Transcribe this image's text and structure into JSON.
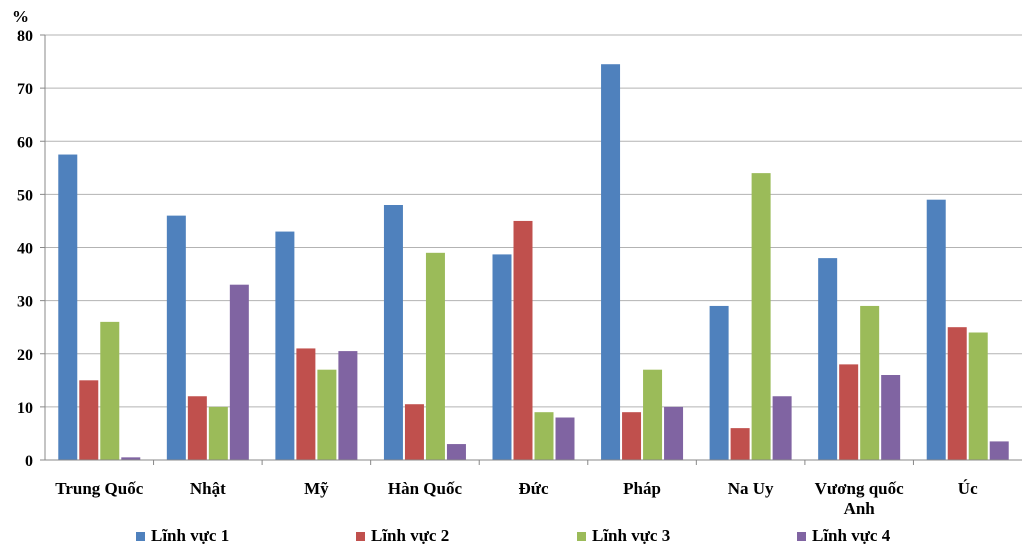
{
  "chart_data": {
    "type": "bar",
    "title": "",
    "y_unit_label": "%",
    "xlabel": "",
    "ylabel": "",
    "ylim": [
      0,
      80
    ],
    "yticks": [
      0,
      10,
      20,
      30,
      40,
      50,
      60,
      70,
      80
    ],
    "grid": true,
    "legend_position": "bottom",
    "categories": [
      "Trung Quốc",
      "Nhật",
      "Mỹ",
      "Hàn Quốc",
      "Đức",
      "Pháp",
      "Na Uy",
      "Vương quốc Anh",
      "Úc"
    ],
    "series": [
      {
        "name": "Lĩnh vực 1",
        "color": "#4F81BD",
        "values": [
          57.5,
          46,
          43,
          48,
          38.7,
          74.5,
          29,
          38,
          49
        ]
      },
      {
        "name": "Lĩnh vực 2",
        "color": "#C0504D",
        "values": [
          15,
          12,
          21,
          10.5,
          45,
          9,
          6,
          18,
          25
        ]
      },
      {
        "name": "Lĩnh vực 3",
        "color": "#9BBB59",
        "values": [
          26,
          10,
          17,
          39,
          9,
          17,
          54,
          29,
          24
        ]
      },
      {
        "name": "Lĩnh vực 4",
        "color": "#8064A2",
        "values": [
          0.5,
          33,
          20.5,
          3,
          8,
          10,
          12,
          16,
          3.5
        ]
      }
    ]
  }
}
